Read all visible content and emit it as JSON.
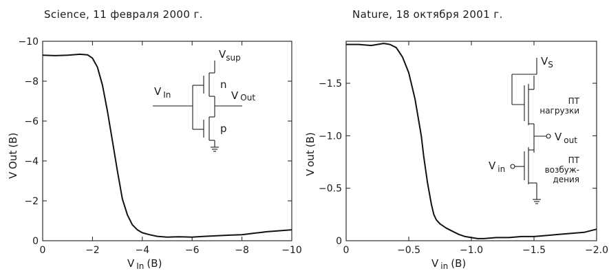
{
  "chart_data": [
    {
      "type": "line",
      "title": "Science, 11 февраля 2000 г.",
      "xlabel_main": "V",
      "xlabel_sub": "In",
      "xlabel_unit": "(B)",
      "ylabel_main": "V",
      "ylabel_sub": "Out",
      "ylabel_unit": "(B)",
      "xlim": [
        0,
        -10
      ],
      "ylim": [
        0,
        -10
      ],
      "xticks": [
        0,
        -2,
        -4,
        -6,
        -8,
        -10
      ],
      "xtick_labels": [
        "0",
        "−2",
        "−4",
        "−6",
        "−8",
        "−10"
      ],
      "yticks": [
        0,
        -2,
        -4,
        -6,
        -8,
        -10
      ],
      "ytick_labels": [
        "0",
        "−2",
        "−4",
        "−6",
        "−8",
        "−10"
      ],
      "x": [
        0,
        -0.5,
        -1,
        -1.5,
        -1.8,
        -2.0,
        -2.2,
        -2.4,
        -2.6,
        -2.8,
        -3.0,
        -3.2,
        -3.4,
        -3.6,
        -3.8,
        -4.0,
        -4.3,
        -4.6,
        -5.0,
        -5.5,
        -6.0,
        -6.5,
        -7.0,
        -7.5,
        -8.0,
        -8.5,
        -9.0,
        -9.5,
        -10.0
      ],
      "y": [
        -9.3,
        -9.28,
        -9.3,
        -9.35,
        -9.32,
        -9.15,
        -8.7,
        -7.8,
        -6.5,
        -5.0,
        -3.5,
        -2.1,
        -1.3,
        -0.8,
        -0.55,
        -0.4,
        -0.3,
        -0.22,
        -0.18,
        -0.2,
        -0.18,
        -0.22,
        -0.25,
        -0.28,
        -0.3,
        -0.38,
        -0.45,
        -0.5,
        -0.55
      ],
      "grid": false,
      "inset": {
        "supply_main": "V",
        "supply_sub": "sup",
        "input_main": "V",
        "input_sub": "In",
        "output_main": "V",
        "output_sub": "Out",
        "nfet_label": "n",
        "pfet_label": "p"
      }
    },
    {
      "type": "line",
      "title": "Nature, 18 октября 2001 г.",
      "xlabel_main": "V",
      "xlabel_sub": "in",
      "xlabel_unit": "(B)",
      "ylabel_main": "V",
      "ylabel_sub": "out",
      "ylabel_unit": "(B)",
      "xlim": [
        0,
        -2.0
      ],
      "ylim": [
        0,
        -1.9
      ],
      "xticks": [
        0,
        -0.5,
        -1.0,
        -1.5,
        -2.0
      ],
      "xtick_labels": [
        "0",
        "−0.5",
        "−1.0",
        "−1.5",
        "−2.0"
      ],
      "yticks": [
        0,
        -0.5,
        -1.0,
        -1.5
      ],
      "ytick_labels": [
        "0",
        "−0.5",
        "−1.0",
        "−1.5"
      ],
      "x": [
        0,
        -0.1,
        -0.2,
        -0.3,
        -0.35,
        -0.4,
        -0.45,
        -0.5,
        -0.55,
        -0.6,
        -0.62,
        -0.65,
        -0.68,
        -0.7,
        -0.72,
        -0.75,
        -0.8,
        -0.85,
        -0.9,
        -0.95,
        -1.0,
        -1.05,
        -1.1,
        -1.2,
        -1.3,
        -1.4,
        -1.5,
        -1.6,
        -1.7,
        -1.8,
        -1.9,
        -2.0
      ],
      "y": [
        -1.87,
        -1.87,
        -1.86,
        -1.88,
        -1.87,
        -1.84,
        -1.75,
        -1.6,
        -1.35,
        -1.0,
        -0.8,
        -0.55,
        -0.35,
        -0.25,
        -0.2,
        -0.16,
        -0.12,
        -0.09,
        -0.06,
        -0.04,
        -0.03,
        -0.02,
        -0.02,
        -0.03,
        -0.03,
        -0.04,
        -0.04,
        -0.05,
        -0.06,
        -0.07,
        -0.08,
        -0.11
      ],
      "grid": false,
      "inset": {
        "supply_main": "V",
        "supply_sub": "S",
        "input_main": "V",
        "input_sub": "in",
        "output_main": "V",
        "output_sub": "out",
        "load_line1": "ПТ",
        "load_line2": "нагрузки",
        "drive_line1": "ПТ",
        "drive_line2": "возбуж-",
        "drive_line3": "дения"
      }
    }
  ]
}
